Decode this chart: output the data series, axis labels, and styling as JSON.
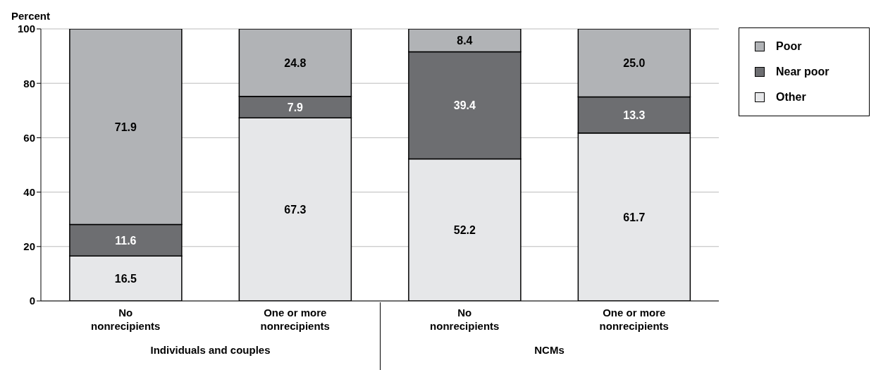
{
  "chart_data": {
    "type": "bar",
    "stacked": true,
    "ylabel": "Percent",
    "categories": [
      "No nonrecipients",
      "One or more nonrecipients",
      "No nonrecipients",
      "One or more nonrecipients"
    ],
    "series": [
      {
        "name": "Other",
        "color": "#e6e7e9",
        "values": [
          16.5,
          67.3,
          52.2,
          61.7
        ],
        "value_labels": [
          "16.5",
          "67.3",
          "52.2",
          "61.7"
        ]
      },
      {
        "name": "Near poor",
        "color": "#6d6e71",
        "values": [
          11.6,
          7.9,
          39.4,
          13.3
        ],
        "value_labels": [
          "11.6",
          "7.9",
          "39.4",
          "13.3"
        ]
      },
      {
        "name": "Poor",
        "color": "#b1b3b6",
        "values": [
          71.9,
          24.8,
          8.4,
          25.0
        ],
        "value_labels": [
          "71.9",
          "24.8",
          "8.4",
          "25.0"
        ]
      }
    ],
    "ylim": [
      0,
      100
    ],
    "yticks": [
      0,
      20,
      40,
      60,
      80,
      100
    ],
    "grid": "y",
    "legend": "top right",
    "annotations": [
      "Individuals and couples",
      "NCMs"
    ]
  }
}
